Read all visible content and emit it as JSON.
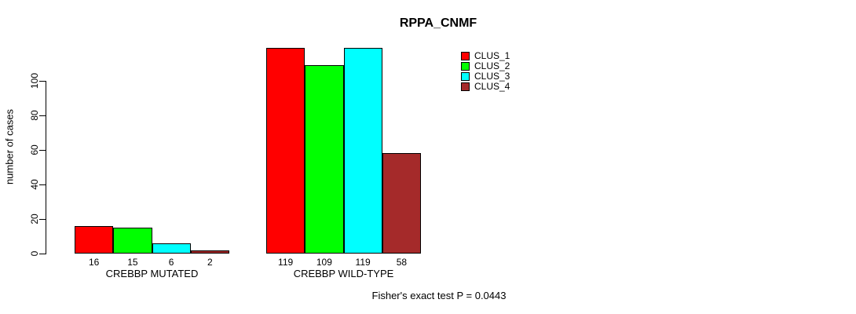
{
  "chart_data": {
    "type": "bar",
    "title": "RPPA_CNMF",
    "xlabel": "",
    "ylabel": "number of cases",
    "ylim": [
      0,
      100
    ],
    "yticks": [
      0,
      20,
      40,
      60,
      80,
      100
    ],
    "grid": false,
    "legend_position": "top-right",
    "categories": [
      "CREBBP MUTATED",
      "CREBBP WILD-TYPE"
    ],
    "series": [
      {
        "name": "CLUS_1",
        "color": "#FF0000",
        "values": [
          16,
          119
        ]
      },
      {
        "name": "CLUS_2",
        "color": "#00FF00",
        "values": [
          15,
          109
        ]
      },
      {
        "name": "CLUS_3",
        "color": "#00FFFF",
        "values": [
          6,
          119
        ]
      },
      {
        "name": "CLUS_4",
        "color": "#A52A2A",
        "values": [
          2,
          58
        ]
      }
    ],
    "bar_value_labels": [
      [
        16,
        15,
        6,
        2
      ],
      [
        119,
        109,
        119,
        58
      ]
    ],
    "annotation": "Fisher's exact test P = 0.0443"
  }
}
